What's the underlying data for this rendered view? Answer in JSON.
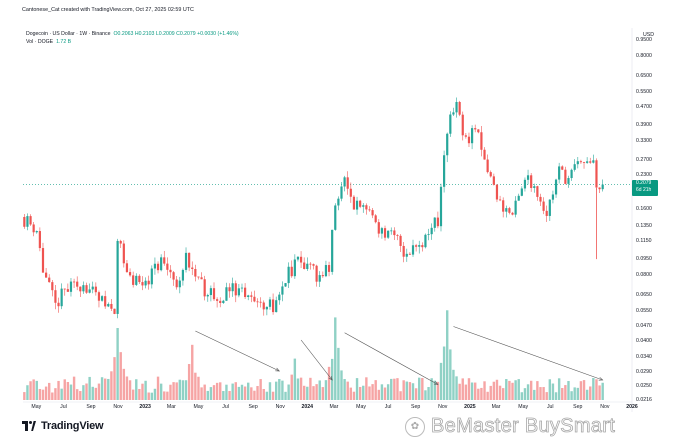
{
  "header": {
    "text": "Cantonese_Cat created with TradingView.com, Oct 27, 2025 02:59 UTC"
  },
  "legend": {
    "symbol": "Dogecoin · US Dollar · 1W · Binance",
    "ohlc": "O0.2063 H0.2103 L0.2009 C0.2079 +0.0030 (+1.46%)",
    "volume_label": "Vol · DOGE",
    "volume_value": "1.72 B"
  },
  "price_axis": {
    "currency": "USD",
    "ticks": [
      "0.9500",
      "0.8000",
      "0.6500",
      "0.5500",
      "0.4700",
      "0.3900",
      "0.3300",
      "0.2700",
      "0.2300",
      "0.1900",
      "0.1600",
      "0.1350",
      "0.1150",
      "0.0950",
      "0.0800",
      "0.0650",
      "0.0550",
      "0.0470",
      "0.0400",
      "0.0340",
      "0.0290",
      "0.0250",
      "0.0216"
    ],
    "last_price": "0.2079",
    "countdown": "6d 21h"
  },
  "time_axis": {
    "ticks": [
      "May",
      "Jul",
      "Sep",
      "Nov",
      "2023",
      "Mar",
      "May",
      "Jul",
      "Sep",
      "Nov",
      "2024",
      "Mar",
      "May",
      "Jul",
      "Sep",
      "Nov",
      "2025",
      "Mar",
      "May",
      "Jul",
      "Sep",
      "Nov",
      "2026"
    ],
    "bold": [
      "2023",
      "2024",
      "2025",
      "2026"
    ]
  },
  "chart_data": {
    "type": "candlestick",
    "symbol": "DOGEUSD",
    "interval": "1W",
    "scale": "log",
    "ylim": [
      0.0216,
      0.95
    ],
    "x_range": [
      "2022-04",
      "2026-01"
    ],
    "last_close": 0.2079,
    "annotations": [
      "four descending trend arrows over volume peaks"
    ],
    "close_path": [
      {
        "date": "2022-04-04",
        "close": 0.145
      },
      {
        "date": "2022-05-02",
        "close": 0.13
      },
      {
        "date": "2022-05-16",
        "close": 0.085
      },
      {
        "date": "2022-06-13",
        "close": 0.058
      },
      {
        "date": "2022-07-04",
        "close": 0.068
      },
      {
        "date": "2022-08-15",
        "close": 0.074
      },
      {
        "date": "2022-09-19",
        "close": 0.061
      },
      {
        "date": "2022-10-24",
        "close": 0.058
      },
      {
        "date": "2022-11-01",
        "close": 0.12
      },
      {
        "date": "2022-11-21",
        "close": 0.083
      },
      {
        "date": "2022-12-19",
        "close": 0.072
      },
      {
        "date": "2023-01-09",
        "close": 0.079
      },
      {
        "date": "2023-02-06",
        "close": 0.093
      },
      {
        "date": "2023-03-13",
        "close": 0.075
      },
      {
        "date": "2023-04-03",
        "close": 0.098
      },
      {
        "date": "2023-05-01",
        "close": 0.074
      },
      {
        "date": "2023-06-12",
        "close": 0.062
      },
      {
        "date": "2023-07-17",
        "close": 0.071
      },
      {
        "date": "2023-08-21",
        "close": 0.062
      },
      {
        "date": "2023-10-16",
        "close": 0.059
      },
      {
        "date": "2023-11-13",
        "close": 0.078
      },
      {
        "date": "2023-12-11",
        "close": 0.095
      },
      {
        "date": "2024-01-22",
        "close": 0.08
      },
      {
        "date": "2024-02-19",
        "close": 0.085
      },
      {
        "date": "2024-03-04",
        "close": 0.17
      },
      {
        "date": "2024-03-25",
        "close": 0.21
      },
      {
        "date": "2024-04-15",
        "close": 0.165
      },
      {
        "date": "2024-05-20",
        "close": 0.16
      },
      {
        "date": "2024-06-17",
        "close": 0.125
      },
      {
        "date": "2024-07-29",
        "close": 0.115
      },
      {
        "date": "2024-08-05",
        "close": 0.1
      },
      {
        "date": "2024-09-23",
        "close": 0.12
      },
      {
        "date": "2024-10-21",
        "close": 0.145
      },
      {
        "date": "2024-11-11",
        "close": 0.38
      },
      {
        "date": "2024-12-02",
        "close": 0.46
      },
      {
        "date": "2024-12-23",
        "close": 0.33
      },
      {
        "date": "2025-01-13",
        "close": 0.38
      },
      {
        "date": "2025-02-03",
        "close": 0.26
      },
      {
        "date": "2025-03-10",
        "close": 0.17
      },
      {
        "date": "2025-04-07",
        "close": 0.15
      },
      {
        "date": "2025-05-12",
        "close": 0.23
      },
      {
        "date": "2025-06-09",
        "close": 0.18
      },
      {
        "date": "2025-06-23",
        "close": 0.155
      },
      {
        "date": "2025-07-21",
        "close": 0.24
      },
      {
        "date": "2025-08-11",
        "close": 0.22
      },
      {
        "date": "2025-09-08",
        "close": 0.27
      },
      {
        "date": "2025-10-06",
        "close": 0.25
      },
      {
        "date": "2025-10-13",
        "close": 0.19
      },
      {
        "date": "2025-10-27",
        "close": 0.2079
      }
    ],
    "volume_peaks": [
      {
        "date": "2022-11-01",
        "relative": 0.95
      },
      {
        "date": "2023-04-17",
        "relative": 0.6
      },
      {
        "date": "2023-12-04",
        "relative": 0.45
      },
      {
        "date": "2024-03-04",
        "relative": 0.9
      },
      {
        "date": "2024-11-11",
        "relative": 1.0
      },
      {
        "date": "2025-10-13",
        "relative": 0.2
      }
    ],
    "colors": {
      "up": "#26a69a",
      "down": "#ef5350",
      "vol_up": "#8fd1c5",
      "vol_down": "#f6a4a4"
    }
  },
  "footer": {
    "brand": "TradingView",
    "watermark": "BeMaster BuySmart"
  }
}
